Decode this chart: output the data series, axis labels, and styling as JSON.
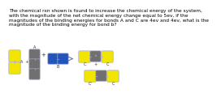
{
  "title_lines": [
    "The chemical rxn shown is found to increase the chemical energy of the system,",
    "with the magnitude of the net chemical energy change equal to 5ev, if the",
    "magnitudes of the binding energies for bonds A and C are 4ev and 4ev, what is the",
    "magnitude of the binding energy for bond b?"
  ],
  "bg_color": "#ffffff",
  "yellow": "#f2e600",
  "gray": "#707070",
  "blue": "#2255bb",
  "text_color": "#000000",
  "label_color": "#333333",
  "title_fontsize": 4.2,
  "label_fontsize": 3.5,
  "connector_color": "#aaaacc",
  "arrow_color": "#5566aa"
}
